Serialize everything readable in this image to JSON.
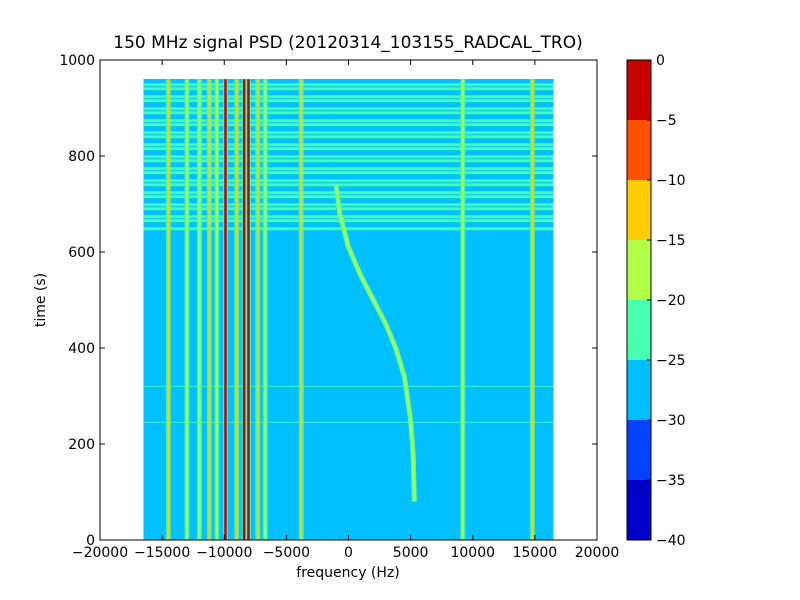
{
  "chart_data": {
    "type": "heatmap",
    "title": "150 MHz signal PSD (20120314_103155_RADCAL_TRO)",
    "xlabel": "frequency (Hz)",
    "ylabel": "time (s)",
    "xlim": [
      -20000,
      20000
    ],
    "ylim": [
      0,
      1000
    ],
    "x_ticks": [
      -20000,
      -15000,
      -10000,
      -5000,
      0,
      5000,
      10000,
      15000,
      20000
    ],
    "x_tick_labels": [
      "−20000",
      "−15000",
      "−10000",
      "−5000",
      "0",
      "5000",
      "10000",
      "15000",
      "20000"
    ],
    "y_ticks": [
      0,
      200,
      400,
      600,
      800,
      1000
    ],
    "y_tick_labels": [
      "0",
      "200",
      "400",
      "600",
      "800",
      "1000"
    ],
    "data_extent": {
      "freq": [
        -16500,
        16500
      ],
      "time": [
        0,
        960
      ]
    },
    "colorbar": {
      "range": [
        -40,
        0
      ],
      "ticks": [
        0,
        -5,
        -10,
        -15,
        -20,
        -25,
        -30,
        -35,
        -40
      ],
      "tick_labels": [
        "0",
        "−5",
        "−10",
        "−15",
        "−20",
        "−25",
        "−30",
        "−35",
        "−40"
      ],
      "levels": [
        {
          "from": -40,
          "to": -35,
          "color": "#0000c8"
        },
        {
          "from": -35,
          "to": -30,
          "color": "#0042ff"
        },
        {
          "from": -30,
          "to": -25,
          "color": "#00c0ff"
        },
        {
          "from": -25,
          "to": -20,
          "color": "#48ffb0"
        },
        {
          "from": -20,
          "to": -15,
          "color": "#b0ff48"
        },
        {
          "from": -15,
          "to": -10,
          "color": "#ffcc00"
        },
        {
          "from": -10,
          "to": -5,
          "color": "#ff5000"
        },
        {
          "from": -5,
          "to": 0,
          "color": "#c80000"
        }
      ]
    },
    "background_level_db": -27,
    "noisy_period": {
      "time": [
        650,
        960
      ],
      "level_db": -20
    },
    "horizontal_lines": [
      {
        "time": 320,
        "level_db": -22
      },
      {
        "time": 245,
        "level_db": -22
      }
    ],
    "carriers": [
      {
        "freq": -14500,
        "level_db": -12
      },
      {
        "freq": -13000,
        "level_db": -18
      },
      {
        "freq": -12000,
        "level_db": -18
      },
      {
        "freq": -11200,
        "level_db": -14
      },
      {
        "freq": -10600,
        "level_db": -18
      },
      {
        "freq": -9900,
        "level_db": -2
      },
      {
        "freq": -9000,
        "level_db": -14
      },
      {
        "freq": -8400,
        "level_db": -2
      },
      {
        "freq": -8050,
        "level_db": -2
      },
      {
        "freq": -7300,
        "level_db": -14
      },
      {
        "freq": -6700,
        "level_db": -18
      },
      {
        "freq": -3800,
        "level_db": -12
      },
      {
        "freq": 9200,
        "level_db": -18
      },
      {
        "freq": 14800,
        "level_db": -12
      }
    ],
    "drifting_signal": {
      "level_db": -17,
      "points": [
        {
          "freq": -1000,
          "time": 740
        },
        {
          "freq": -700,
          "time": 680
        },
        {
          "freq": 0,
          "time": 610
        },
        {
          "freq": 1000,
          "time": 550
        },
        {
          "freq": 2000,
          "time": 500
        },
        {
          "freq": 3000,
          "time": 450
        },
        {
          "freq": 3800,
          "time": 400
        },
        {
          "freq": 4500,
          "time": 340
        },
        {
          "freq": 5000,
          "time": 250
        },
        {
          "freq": 5200,
          "time": 180
        },
        {
          "freq": 5300,
          "time": 80
        }
      ]
    }
  }
}
